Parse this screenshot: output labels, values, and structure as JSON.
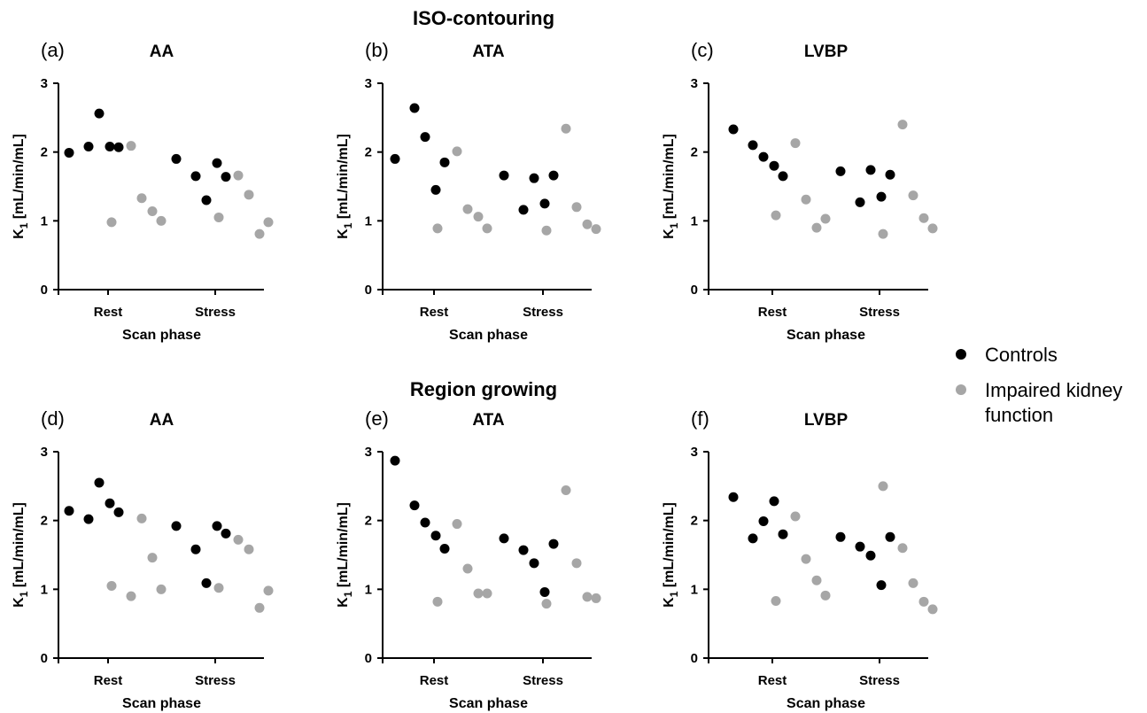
{
  "section_titles": [
    "ISO-contouring",
    "Region growing"
  ],
  "legend": {
    "items": [
      {
        "label": "Controls",
        "color": "#000000"
      },
      {
        "label": "Impaired kidney function",
        "color": "#a6a6a6"
      }
    ]
  },
  "chart_data": [
    {
      "type": "scatter",
      "panel": "(a)",
      "title": "AA",
      "xlabel": "Scan phase",
      "ylabel": "K1 [mL/min/mL]",
      "categories": [
        "Rest",
        "Stress"
      ],
      "ylim": [
        0,
        3
      ],
      "yticks": [
        0,
        1,
        2,
        3
      ],
      "series": [
        {
          "name": "Controls",
          "color": "#000000",
          "points": [
            {
              "x": "Rest",
              "y": 1.99
            },
            {
              "x": "Rest",
              "y": 2.08
            },
            {
              "x": "Rest",
              "y": 2.56
            },
            {
              "x": "Rest",
              "y": 2.08
            },
            {
              "x": "Rest",
              "y": 2.07
            },
            {
              "x": "Stress",
              "y": 1.9
            },
            {
              "x": "Stress",
              "y": 1.65
            },
            {
              "x": "Stress",
              "y": 1.3
            },
            {
              "x": "Stress",
              "y": 1.84
            },
            {
              "x": "Stress",
              "y": 1.64
            }
          ]
        },
        {
          "name": "Impaired kidney function",
          "color": "#a6a6a6",
          "points": [
            {
              "x": "Rest",
              "y": 0.98
            },
            {
              "x": "Rest",
              "y": 2.09
            },
            {
              "x": "Rest",
              "y": 1.33
            },
            {
              "x": "Rest",
              "y": 1.14
            },
            {
              "x": "Rest",
              "y": 1.0
            },
            {
              "x": "Stress",
              "y": 1.05
            },
            {
              "x": "Stress",
              "y": 1.66
            },
            {
              "x": "Stress",
              "y": 1.38
            },
            {
              "x": "Stress",
              "y": 0.81
            },
            {
              "x": "Stress",
              "y": 0.98
            }
          ]
        }
      ]
    },
    {
      "type": "scatter",
      "panel": "(b)",
      "title": "ATA",
      "xlabel": "Scan phase",
      "ylabel": "K1 [mL/min/mL]",
      "categories": [
        "Rest",
        "Stress"
      ],
      "ylim": [
        0,
        3
      ],
      "yticks": [
        0,
        1,
        2,
        3
      ],
      "series": [
        {
          "name": "Controls",
          "color": "#000000",
          "points": [
            {
              "x": "Rest",
              "y": 1.9
            },
            {
              "x": "Rest",
              "y": 2.64
            },
            {
              "x": "Rest",
              "y": 2.22
            },
            {
              "x": "Rest",
              "y": 1.45
            },
            {
              "x": "Rest",
              "y": 1.85
            },
            {
              "x": "Stress",
              "y": 1.66
            },
            {
              "x": "Stress",
              "y": 1.16
            },
            {
              "x": "Stress",
              "y": 1.62
            },
            {
              "x": "Stress",
              "y": 1.25
            },
            {
              "x": "Stress",
              "y": 1.66
            }
          ]
        },
        {
          "name": "Impaired kidney function",
          "color": "#a6a6a6",
          "points": [
            {
              "x": "Rest",
              "y": 0.89
            },
            {
              "x": "Rest",
              "y": 2.01
            },
            {
              "x": "Rest",
              "y": 1.17
            },
            {
              "x": "Rest",
              "y": 1.06
            },
            {
              "x": "Rest",
              "y": 0.89
            },
            {
              "x": "Stress",
              "y": 0.86
            },
            {
              "x": "Stress",
              "y": 2.34
            },
            {
              "x": "Stress",
              "y": 1.2
            },
            {
              "x": "Stress",
              "y": 0.95
            },
            {
              "x": "Stress",
              "y": 0.88
            }
          ]
        }
      ]
    },
    {
      "type": "scatter",
      "panel": "(c)",
      "title": "LVBP",
      "xlabel": "Scan phase",
      "ylabel": "K1 [mL/min/mL]",
      "categories": [
        "Rest",
        "Stress"
      ],
      "ylim": [
        0,
        3
      ],
      "yticks": [
        0,
        1,
        2,
        3
      ],
      "series": [
        {
          "name": "Controls",
          "color": "#000000",
          "points": [
            {
              "x": "Rest",
              "y": 2.33
            },
            {
              "x": "Rest",
              "y": 2.1
            },
            {
              "x": "Rest",
              "y": 1.93
            },
            {
              "x": "Rest",
              "y": 1.8
            },
            {
              "x": "Rest",
              "y": 1.65
            },
            {
              "x": "Stress",
              "y": 1.72
            },
            {
              "x": "Stress",
              "y": 1.27
            },
            {
              "x": "Stress",
              "y": 1.74
            },
            {
              "x": "Stress",
              "y": 1.35
            },
            {
              "x": "Stress",
              "y": 1.67
            }
          ]
        },
        {
          "name": "Impaired kidney function",
          "color": "#a6a6a6",
          "points": [
            {
              "x": "Rest",
              "y": 1.08
            },
            {
              "x": "Rest",
              "y": 2.13
            },
            {
              "x": "Rest",
              "y": 1.31
            },
            {
              "x": "Rest",
              "y": 0.9
            },
            {
              "x": "Rest",
              "y": 1.03
            },
            {
              "x": "Stress",
              "y": 0.81
            },
            {
              "x": "Stress",
              "y": 2.4
            },
            {
              "x": "Stress",
              "y": 1.37
            },
            {
              "x": "Stress",
              "y": 1.04
            },
            {
              "x": "Stress",
              "y": 0.89
            }
          ]
        }
      ]
    },
    {
      "type": "scatter",
      "panel": "(d)",
      "title": "AA",
      "xlabel": "Scan phase",
      "ylabel": "K1 [mL/min/mL]",
      "categories": [
        "Rest",
        "Stress"
      ],
      "ylim": [
        0,
        3
      ],
      "yticks": [
        0,
        1,
        2,
        3
      ],
      "series": [
        {
          "name": "Controls",
          "color": "#000000",
          "points": [
            {
              "x": "Rest",
              "y": 2.14
            },
            {
              "x": "Rest",
              "y": 2.02
            },
            {
              "x": "Rest",
              "y": 2.55
            },
            {
              "x": "Rest",
              "y": 2.25
            },
            {
              "x": "Rest",
              "y": 2.12
            },
            {
              "x": "Stress",
              "y": 1.92
            },
            {
              "x": "Stress",
              "y": 1.58
            },
            {
              "x": "Stress",
              "y": 1.09
            },
            {
              "x": "Stress",
              "y": 1.92
            },
            {
              "x": "Stress",
              "y": 1.81
            }
          ]
        },
        {
          "name": "Impaired kidney function",
          "color": "#a6a6a6",
          "points": [
            {
              "x": "Rest",
              "y": 1.05
            },
            {
              "x": "Rest",
              "y": 0.9
            },
            {
              "x": "Rest",
              "y": 2.03
            },
            {
              "x": "Rest",
              "y": 1.46
            },
            {
              "x": "Rest",
              "y": 1.0
            },
            {
              "x": "Stress",
              "y": 1.02
            },
            {
              "x": "Stress",
              "y": 1.72
            },
            {
              "x": "Stress",
              "y": 1.58
            },
            {
              "x": "Stress",
              "y": 0.73
            },
            {
              "x": "Stress",
              "y": 0.98
            }
          ]
        }
      ]
    },
    {
      "type": "scatter",
      "panel": "(e)",
      "title": "ATA",
      "xlabel": "Scan phase",
      "ylabel": "K1 [mL/min/mL]",
      "categories": [
        "Rest",
        "Stress"
      ],
      "ylim": [
        0,
        3
      ],
      "yticks": [
        0,
        1,
        2,
        3
      ],
      "series": [
        {
          "name": "Controls",
          "color": "#000000",
          "points": [
            {
              "x": "Rest",
              "y": 2.87
            },
            {
              "x": "Rest",
              "y": 2.22
            },
            {
              "x": "Rest",
              "y": 1.97
            },
            {
              "x": "Rest",
              "y": 1.78
            },
            {
              "x": "Rest",
              "y": 1.59
            },
            {
              "x": "Stress",
              "y": 1.74
            },
            {
              "x": "Stress",
              "y": 1.57
            },
            {
              "x": "Stress",
              "y": 1.38
            },
            {
              "x": "Stress",
              "y": 0.96
            },
            {
              "x": "Stress",
              "y": 1.66
            }
          ]
        },
        {
          "name": "Impaired kidney function",
          "color": "#a6a6a6",
          "points": [
            {
              "x": "Rest",
              "y": 0.82
            },
            {
              "x": "Rest",
              "y": 1.95
            },
            {
              "x": "Rest",
              "y": 1.3
            },
            {
              "x": "Rest",
              "y": 0.94
            },
            {
              "x": "Rest",
              "y": 0.94
            },
            {
              "x": "Stress",
              "y": 0.79
            },
            {
              "x": "Stress",
              "y": 2.44
            },
            {
              "x": "Stress",
              "y": 1.38
            },
            {
              "x": "Stress",
              "y": 0.89
            },
            {
              "x": "Stress",
              "y": 0.87
            }
          ]
        }
      ]
    },
    {
      "type": "scatter",
      "panel": "(f)",
      "title": "LVBP",
      "xlabel": "Scan phase",
      "ylabel": "K1 [mL/min/mL]",
      "categories": [
        "Rest",
        "Stress"
      ],
      "ylim": [
        0,
        3
      ],
      "yticks": [
        0,
        1,
        2,
        3
      ],
      "series": [
        {
          "name": "Controls",
          "color": "#000000",
          "points": [
            {
              "x": "Rest",
              "y": 2.34
            },
            {
              "x": "Rest",
              "y": 1.74
            },
            {
              "x": "Rest",
              "y": 1.99
            },
            {
              "x": "Rest",
              "y": 2.28
            },
            {
              "x": "Rest",
              "y": 1.8
            },
            {
              "x": "Stress",
              "y": 1.76
            },
            {
              "x": "Stress",
              "y": 1.62
            },
            {
              "x": "Stress",
              "y": 1.49
            },
            {
              "x": "Stress",
              "y": 1.06
            },
            {
              "x": "Stress",
              "y": 1.76
            }
          ]
        },
        {
          "name": "Impaired kidney function",
          "color": "#a6a6a6",
          "points": [
            {
              "x": "Rest",
              "y": 0.83
            },
            {
              "x": "Rest",
              "y": 2.06
            },
            {
              "x": "Rest",
              "y": 1.44
            },
            {
              "x": "Rest",
              "y": 1.13
            },
            {
              "x": "Rest",
              "y": 0.91
            },
            {
              "x": "Stress",
              "y": 2.5
            },
            {
              "x": "Stress",
              "y": 1.6
            },
            {
              "x": "Stress",
              "y": 1.09
            },
            {
              "x": "Stress",
              "y": 0.82
            },
            {
              "x": "Stress",
              "y": 0.71
            }
          ]
        }
      ]
    }
  ]
}
